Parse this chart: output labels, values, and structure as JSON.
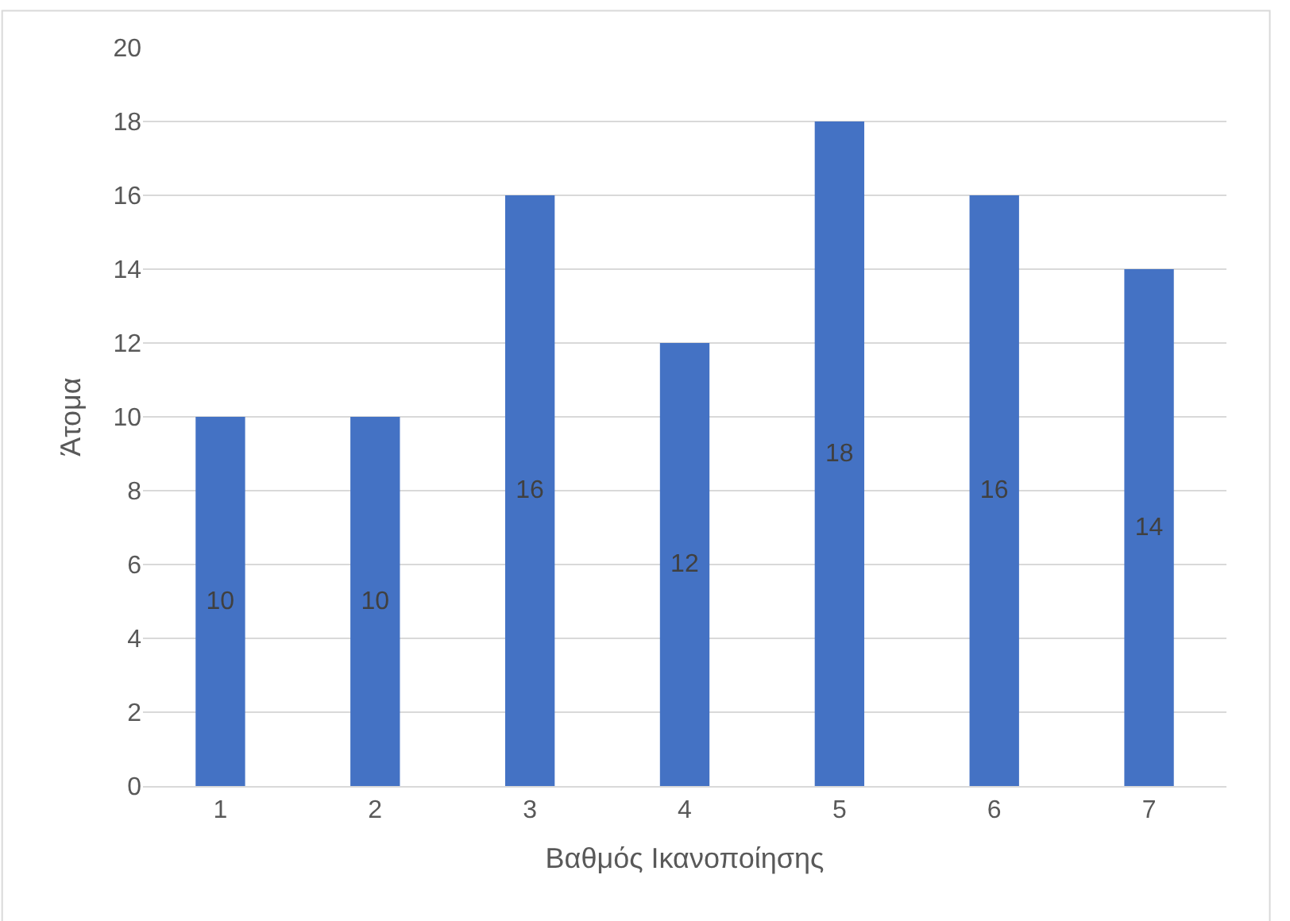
{
  "chart_data": {
    "type": "bar",
    "xlabel": "Βαθμός Ικανοποίησης",
    "ylabel": "Άτομα",
    "categories": [
      "1",
      "2",
      "3",
      "4",
      "5",
      "6",
      "7"
    ],
    "values": [
      10,
      10,
      16,
      12,
      18,
      16,
      14
    ],
    "color": "#4472c4",
    "ylim": [
      0,
      20
    ],
    "yticks": [
      0,
      2,
      4,
      6,
      8,
      10,
      12,
      14,
      16,
      18,
      20
    ],
    "grid": "y",
    "data_labels": true
  }
}
